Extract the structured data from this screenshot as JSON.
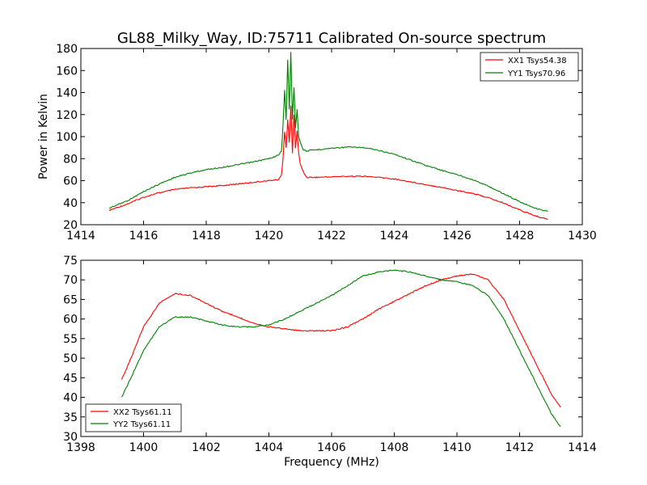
{
  "figure": {
    "title": "GL88_Milky_Way, ID:75711 Calibrated On-source spectrum"
  },
  "chart_data": [
    {
      "type": "line",
      "title": "GL88_Milky_Way, ID:75711 Calibrated On-source spectrum",
      "xlabel": "",
      "ylabel": "Power in Kelvin",
      "xlim": [
        1414,
        1430
      ],
      "ylim": [
        20,
        180
      ],
      "xticks": [
        1414,
        1416,
        1418,
        1420,
        1422,
        1424,
        1426,
        1428,
        1430
      ],
      "yticks": [
        20,
        40,
        60,
        80,
        100,
        120,
        140,
        160,
        180
      ],
      "grid": false,
      "legend_position": "top-right",
      "series": [
        {
          "name": "XX1 Tsys54.38",
          "color": "#ff0000",
          "x": [
            1414.9,
            1415.5,
            1416.0,
            1416.5,
            1417.0,
            1417.5,
            1418.0,
            1418.5,
            1419.0,
            1419.5,
            1420.0,
            1420.3,
            1420.4,
            1420.45,
            1420.5,
            1420.55,
            1420.6,
            1420.65,
            1420.7,
            1420.75,
            1420.8,
            1420.85,
            1420.9,
            1420.95,
            1421.0,
            1421.1,
            1421.2,
            1421.5,
            1422.0,
            1422.5,
            1423.0,
            1423.5,
            1424.0,
            1424.5,
            1425.0,
            1425.5,
            1426.0,
            1426.5,
            1427.0,
            1427.5,
            1428.0,
            1428.5,
            1428.9
          ],
          "y": [
            33,
            39,
            45,
            49,
            52,
            53.5,
            54.5,
            55.5,
            57,
            58.5,
            60,
            61,
            65,
            80,
            105,
            90,
            115,
            95,
            128,
            85,
            120,
            90,
            105,
            85,
            75,
            68,
            63,
            63,
            63.5,
            64,
            64,
            63,
            61.5,
            59,
            56.5,
            54,
            51,
            48.5,
            44.5,
            39.5,
            33.5,
            28,
            25
          ]
        },
        {
          "name": "YY1 Tsys70.96",
          "color": "#008000",
          "x": [
            1414.9,
            1415.5,
            1416.0,
            1416.5,
            1417.0,
            1417.5,
            1418.0,
            1418.5,
            1419.0,
            1419.5,
            1420.0,
            1420.3,
            1420.4,
            1420.45,
            1420.5,
            1420.55,
            1420.6,
            1420.65,
            1420.7,
            1420.75,
            1420.8,
            1420.85,
            1420.9,
            1420.95,
            1421.0,
            1421.1,
            1421.2,
            1421.5,
            1422.0,
            1422.5,
            1423.0,
            1423.5,
            1424.0,
            1424.5,
            1425.0,
            1425.5,
            1426.0,
            1426.5,
            1427.0,
            1427.5,
            1428.0,
            1428.5,
            1428.9
          ],
          "y": [
            35,
            42,
            50,
            57,
            63,
            67,
            70,
            72,
            74.5,
            77,
            80,
            83,
            87,
            110,
            142,
            115,
            170,
            125,
            177,
            115,
            145,
            108,
            125,
            100,
            95,
            88,
            87,
            88,
            89.5,
            90.5,
            90,
            87.5,
            84,
            79,
            74,
            69.5,
            65.5,
            61,
            55,
            48,
            41,
            35,
            32
          ]
        }
      ]
    },
    {
      "type": "line",
      "title": "",
      "xlabel": "Frequency (MHz)",
      "ylabel": "",
      "xlim": [
        1398,
        1414
      ],
      "ylim": [
        30,
        75
      ],
      "xticks": [
        1398,
        1400,
        1402,
        1404,
        1406,
        1408,
        1410,
        1412,
        1414
      ],
      "yticks": [
        30,
        35,
        40,
        45,
        50,
        55,
        60,
        65,
        70,
        75
      ],
      "grid": false,
      "legend_position": "bottom-left",
      "series": [
        {
          "name": "XX2 Tsys61.11",
          "color": "#ff0000",
          "x": [
            1399.3,
            1399.6,
            1400.0,
            1400.5,
            1401.0,
            1401.5,
            1402.0,
            1402.5,
            1403.0,
            1403.5,
            1404.0,
            1404.5,
            1405.0,
            1405.5,
            1406.0,
            1406.5,
            1407.0,
            1407.5,
            1408.0,
            1408.5,
            1409.0,
            1409.5,
            1410.0,
            1410.5,
            1411.0,
            1411.5,
            1412.0,
            1412.5,
            1413.0,
            1413.3
          ],
          "y": [
            44.5,
            50,
            58,
            64,
            66.5,
            66,
            64,
            62,
            60.5,
            59,
            58,
            57.5,
            57,
            57,
            57,
            58,
            60,
            62.5,
            64.5,
            66.5,
            68.5,
            70,
            71,
            71.5,
            70,
            65,
            57,
            49,
            41,
            37.5
          ]
        },
        {
          "name": "YY2 Tsys61.11",
          "color": "#008000",
          "x": [
            1399.3,
            1399.6,
            1400.0,
            1400.5,
            1401.0,
            1401.5,
            1402.0,
            1402.5,
            1403.0,
            1403.5,
            1404.0,
            1404.5,
            1405.0,
            1405.5,
            1406.0,
            1406.5,
            1407.0,
            1407.5,
            1408.0,
            1408.5,
            1409.0,
            1409.5,
            1410.0,
            1410.5,
            1411.0,
            1411.5,
            1412.0,
            1412.5,
            1413.0,
            1413.3
          ],
          "y": [
            40,
            45,
            52,
            58,
            60.5,
            60.5,
            59.5,
            58.5,
            58,
            58,
            58.5,
            60,
            62,
            64,
            66,
            68.5,
            71,
            72,
            72.5,
            72,
            71,
            70,
            69.5,
            68.5,
            66,
            60,
            52,
            44,
            36,
            32.5
          ]
        }
      ]
    }
  ]
}
